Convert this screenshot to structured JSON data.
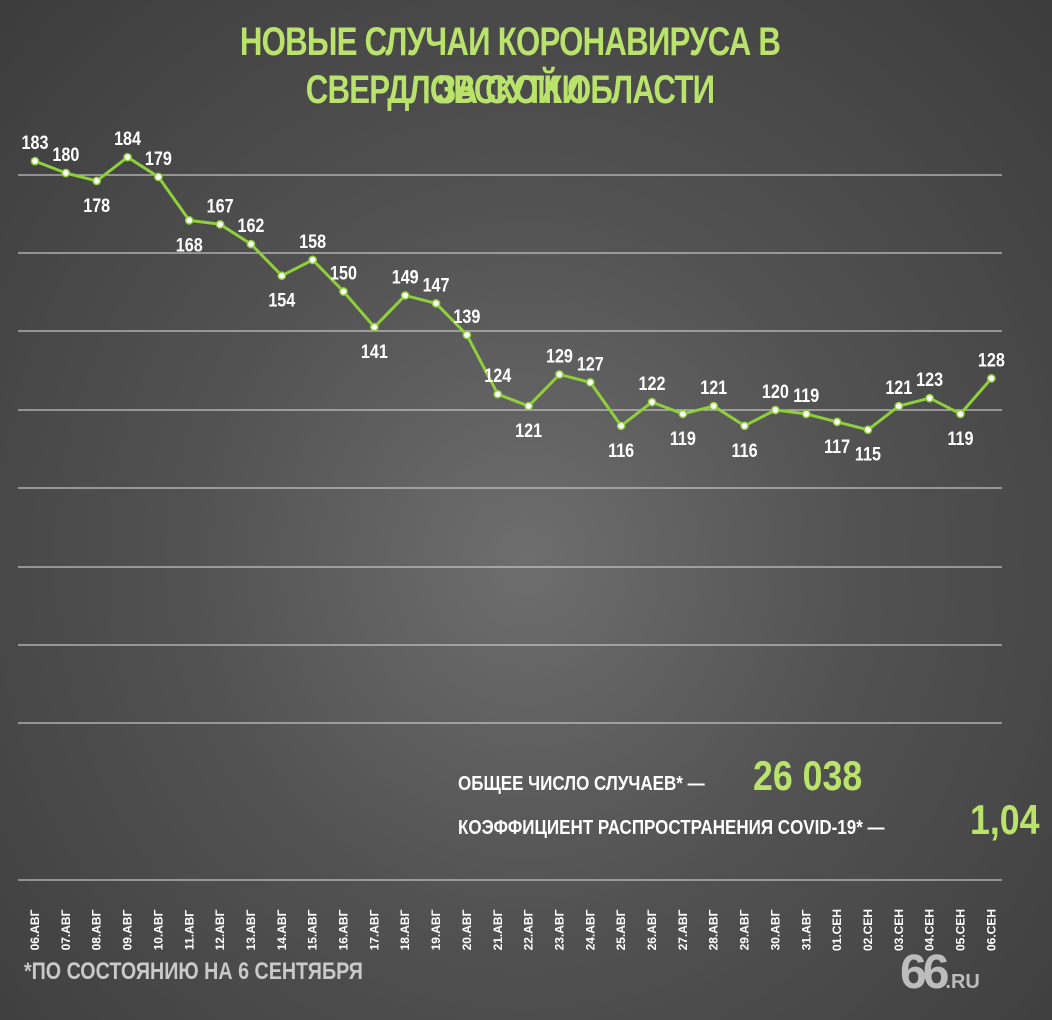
{
  "title_line1": "НОВЫЕ СЛУЧАИ КОРОНАВИРУСА В СВЕРДЛОВСКОЙ ОБЛАСТИ",
  "title_line2": "ЗА СУТКИ",
  "colors": {
    "accent": "#b9e36a",
    "line": "#8fcf3c",
    "text": "#ffffff",
    "grid": "#d8d8d8"
  },
  "summary": {
    "total_label": "ОБЩЕЕ ЧИСЛО СЛУЧАЕВ* —",
    "total_value": "26 038",
    "coef_label": "КОЭФФИЦИЕНТ РАСПРОСТРАНЕНИЯ COVID-19* —",
    "coef_value": "1,04"
  },
  "footnote": "*ПО СОСТОЯНИЮ НА 6 СЕНТЯБРЯ",
  "logo": {
    "main": "66",
    "suffix": ".RU"
  },
  "chart_data": {
    "type": "line",
    "title": "НОВЫЕ СЛУЧАИ КОРОНАВИРУСА В СВЕРДЛОВСКОЙ ОБЛАСТИ ЗА СУТКИ",
    "categories": [
      "06.АВГ",
      "07.АВГ",
      "08.АВГ",
      "09.АВГ",
      "10.АВГ",
      "11.АВГ",
      "12.АВГ",
      "13.АВГ",
      "14.АВГ",
      "15.АВГ",
      "16.АВГ",
      "17.АВГ",
      "18.АВГ",
      "19.АВГ",
      "20.АВГ",
      "21.АВГ",
      "22.АВГ",
      "23.АВГ",
      "24.АВГ",
      "25.АВГ",
      "26.АВГ",
      "27.АВГ",
      "28.АВГ",
      "29.АВГ",
      "30.АВГ",
      "31.АВГ",
      "01.СЕН",
      "02.СЕН",
      "03.СЕН",
      "04.СЕН",
      "05.СЕН",
      "06.СЕН"
    ],
    "values": [
      183,
      180,
      178,
      184,
      179,
      168,
      167,
      162,
      154,
      158,
      150,
      141,
      149,
      147,
      139,
      124,
      121,
      129,
      127,
      116,
      122,
      119,
      121,
      116,
      120,
      119,
      117,
      115,
      121,
      123,
      119,
      128
    ],
    "label_position": [
      "above",
      "above",
      "below",
      "above",
      "above",
      "below",
      "above",
      "above",
      "below",
      "above",
      "above",
      "below",
      "above",
      "above",
      "above",
      "above",
      "below",
      "above",
      "above",
      "below",
      "above",
      "below",
      "above",
      "below",
      "above",
      "above",
      "below",
      "below",
      "above",
      "above",
      "below",
      "above"
    ],
    "grid": true,
    "legend": "none"
  }
}
